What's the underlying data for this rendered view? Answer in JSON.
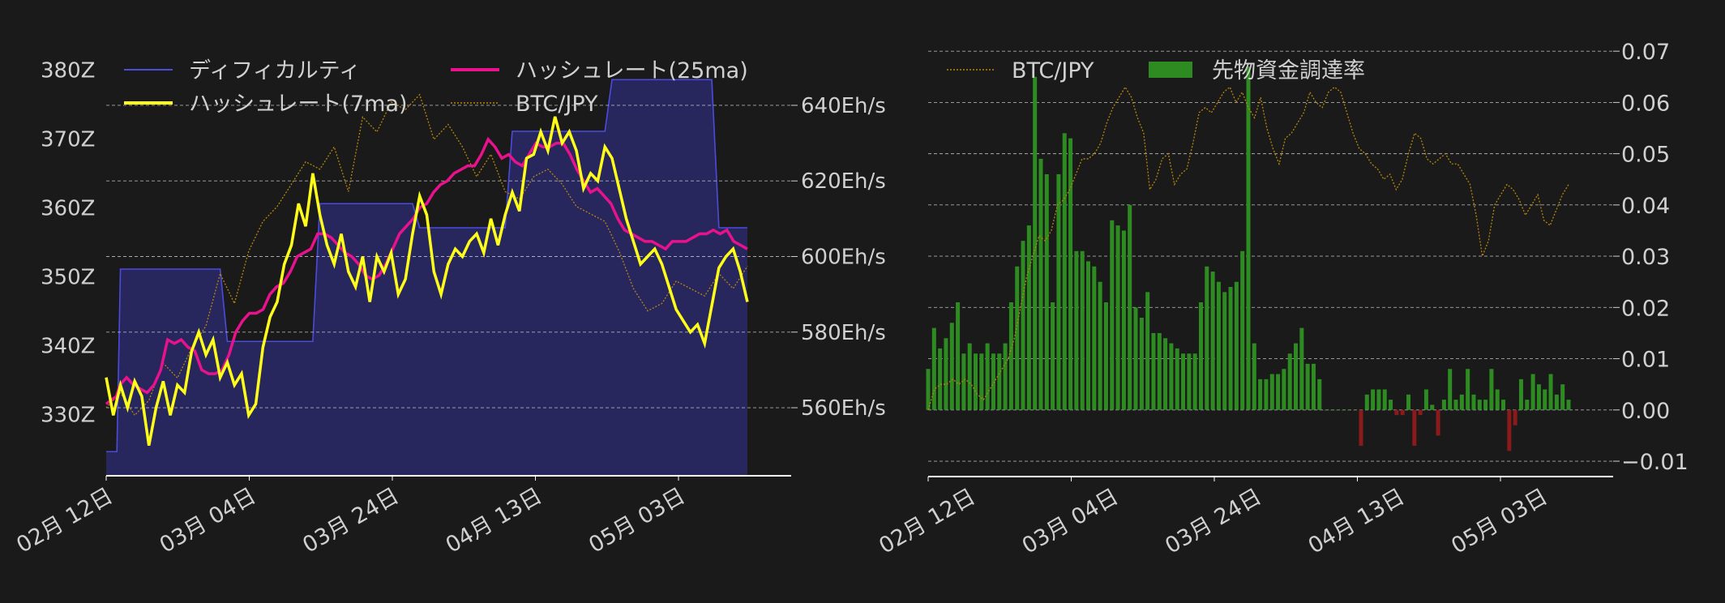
{
  "colors": {
    "background": "#1a1a1a",
    "difficulty_line": "#4b4bdc",
    "difficulty_fill": "#27275e",
    "hash7": "#ffff19",
    "hash25": "#e8128c",
    "btc": "#b8860b",
    "funding_pos": "#2e8b22",
    "funding_neg": "#8b1a1a",
    "grid": "#d0d0d0",
    "axis": "#ffffff",
    "text": "#d0d0d0"
  },
  "chart_data": [
    {
      "type": "line",
      "legend": [
        "ディフィカルティ",
        "ハッシュレート(25ma)",
        "ハッシュレート(7ma)",
        "BTC/JPY"
      ],
      "legend_placement": "top",
      "grid": true,
      "x_tick_labels": [
        "02月 12日",
        "03月 04日",
        "03月 24日",
        "04月 13日",
        "05月 03日"
      ],
      "x_tick_days": [
        0,
        20,
        40,
        60,
        80
      ],
      "xlim_days": [
        0,
        90
      ],
      "left_axis": {
        "ticks": [
          330,
          340,
          350,
          360,
          370,
          380
        ],
        "tick_labels": [
          "330Z",
          "340Z",
          "350Z",
          "360Z",
          "370Z",
          "380Z"
        ],
        "ylim": [
          321,
          383
        ]
      },
      "right_axis": {
        "ticks": [
          560,
          580,
          600,
          620,
          640
        ],
        "tick_labels": [
          "560Eh/s",
          "580Eh/s",
          "600Eh/s",
          "620Eh/s",
          "640Eh/s"
        ],
        "ylim": [
          542,
          655
        ]
      },
      "difficulty": [
        [
          0,
          324.5
        ],
        [
          1.5,
          324.5
        ],
        [
          2,
          351
        ],
        [
          16,
          351
        ],
        [
          17,
          340.5
        ],
        [
          29,
          340.5
        ],
        [
          30,
          360.5
        ],
        [
          43,
          360.5
        ],
        [
          44,
          357
        ],
        [
          56,
          357
        ],
        [
          57,
          371
        ],
        [
          70,
          371
        ],
        [
          71,
          378.5
        ],
        [
          85,
          378.5
        ],
        [
          86,
          357
        ],
        [
          90,
          357
        ]
      ],
      "hashrate_25ma": [
        [
          0,
          561
        ],
        [
          3,
          563
        ],
        [
          4,
          566
        ],
        [
          6,
          568
        ],
        [
          8,
          566
        ],
        [
          10,
          565
        ],
        [
          12,
          564
        ],
        [
          14,
          566
        ],
        [
          16,
          570
        ],
        [
          18,
          578
        ],
        [
          20,
          577
        ],
        [
          22,
          578
        ],
        [
          24,
          576
        ],
        [
          26,
          575
        ],
        [
          28,
          570
        ],
        [
          30,
          569
        ],
        [
          32,
          569
        ],
        [
          34,
          570
        ],
        [
          36,
          574
        ],
        [
          38,
          580
        ],
        [
          40,
          583
        ],
        [
          42,
          585
        ],
        [
          44,
          585
        ],
        [
          46,
          586
        ],
        [
          48,
          590
        ],
        [
          50,
          592
        ],
        [
          52,
          593
        ],
        [
          54,
          596
        ],
        [
          56,
          600
        ],
        [
          58,
          601
        ],
        [
          60,
          602
        ],
        [
          62,
          606
        ],
        [
          64,
          606
        ],
        [
          66,
          605
        ],
        [
          68,
          603
        ],
        [
          70,
          601
        ],
        [
          72,
          600
        ],
        [
          74,
          598
        ],
        [
          76,
          595
        ],
        [
          78,
          594
        ],
        [
          80,
          595
        ],
        [
          82,
          598
        ],
        [
          84,
          602
        ],
        [
          86,
          606
        ],
        [
          88,
          608
        ],
        [
          90,
          610
        ],
        [
          92,
          613
        ],
        [
          94,
          614
        ],
        [
          96,
          617
        ],
        [
          98,
          619
        ],
        [
          100,
          620
        ],
        [
          102,
          622
        ],
        [
          104,
          623
        ],
        [
          106,
          624
        ],
        [
          108,
          624
        ],
        [
          110,
          627
        ],
        [
          112,
          631
        ],
        [
          114,
          629
        ],
        [
          116,
          626
        ],
        [
          118,
          627
        ],
        [
          120,
          625
        ],
        [
          122,
          624
        ],
        [
          124,
          627
        ],
        [
          126,
          630
        ],
        [
          128,
          629
        ],
        [
          130,
          629
        ],
        [
          132,
          630
        ],
        [
          134,
          630
        ],
        [
          136,
          627
        ],
        [
          138,
          623
        ],
        [
          140,
          620
        ],
        [
          142,
          617
        ],
        [
          144,
          618
        ],
        [
          146,
          616
        ],
        [
          148,
          614
        ],
        [
          150,
          610
        ],
        [
          152,
          607
        ],
        [
          154,
          606
        ],
        [
          156,
          605
        ],
        [
          158,
          604
        ],
        [
          160,
          604
        ],
        [
          162,
          603
        ],
        [
          164,
          602
        ],
        [
          166,
          604
        ],
        [
          168,
          604
        ],
        [
          170,
          604
        ],
        [
          172,
          605
        ],
        [
          174,
          606
        ],
        [
          176,
          606
        ],
        [
          178,
          607
        ],
        [
          180,
          606
        ],
        [
          182,
          607
        ],
        [
          184,
          604
        ],
        [
          186,
          603
        ],
        [
          188,
          602
        ]
      ],
      "hashrate_7ma": [
        [
          0,
          568
        ],
        [
          1,
          558
        ],
        [
          2,
          566
        ],
        [
          3,
          560
        ],
        [
          4,
          567
        ],
        [
          5,
          563
        ],
        [
          6,
          550
        ],
        [
          7,
          560
        ],
        [
          8,
          567
        ],
        [
          9,
          558
        ],
        [
          10,
          566
        ],
        [
          11,
          564
        ],
        [
          12,
          575
        ],
        [
          13,
          580
        ],
        [
          14,
          574
        ],
        [
          15,
          578
        ],
        [
          16,
          568
        ],
        [
          17,
          572
        ],
        [
          18,
          566
        ],
        [
          19,
          569
        ],
        [
          20,
          558
        ],
        [
          21,
          561
        ],
        [
          22,
          576
        ],
        [
          23,
          584
        ],
        [
          24,
          588
        ],
        [
          25,
          598
        ],
        [
          26,
          603
        ],
        [
          27,
          614
        ],
        [
          28,
          608
        ],
        [
          29,
          622
        ],
        [
          30,
          611
        ],
        [
          31,
          603
        ],
        [
          32,
          598
        ],
        [
          33,
          606
        ],
        [
          34,
          596
        ],
        [
          35,
          592
        ],
        [
          36,
          600
        ],
        [
          37,
          588
        ],
        [
          38,
          600
        ],
        [
          39,
          596
        ],
        [
          40,
          601
        ],
        [
          41,
          590
        ],
        [
          42,
          594
        ],
        [
          43,
          606
        ],
        [
          44,
          616
        ],
        [
          45,
          611
        ],
        [
          46,
          596
        ],
        [
          47,
          590
        ],
        [
          48,
          598
        ],
        [
          49,
          602
        ],
        [
          50,
          600
        ],
        [
          51,
          604
        ],
        [
          52,
          606
        ],
        [
          53,
          601
        ],
        [
          54,
          610
        ],
        [
          55,
          603
        ],
        [
          56,
          611
        ],
        [
          57,
          617
        ],
        [
          58,
          612
        ],
        [
          59,
          626
        ],
        [
          60,
          627
        ],
        [
          61,
          633
        ],
        [
          62,
          628
        ],
        [
          63,
          637
        ],
        [
          64,
          630
        ],
        [
          65,
          633
        ],
        [
          66,
          628
        ],
        [
          67,
          618
        ],
        [
          68,
          622
        ],
        [
          69,
          620
        ],
        [
          70,
          629
        ],
        [
          71,
          626
        ],
        [
          72,
          618
        ],
        [
          73,
          610
        ],
        [
          74,
          604
        ],
        [
          75,
          598
        ],
        [
          76,
          600
        ],
        [
          77,
          602
        ],
        [
          78,
          598
        ],
        [
          79,
          592
        ],
        [
          80,
          586
        ],
        [
          81,
          583
        ],
        [
          82,
          580
        ],
        [
          83,
          582
        ],
        [
          84,
          577
        ],
        [
          85,
          587
        ],
        [
          86,
          597
        ],
        [
          87,
          600
        ],
        [
          88,
          602
        ],
        [
          89,
          596
        ],
        [
          90,
          588
        ]
      ],
      "btc_jpy_note": "unlabeled price line (shares BTC/JPY legend), unit-less display curve",
      "btc_jpy": [
        [
          0,
          0.08
        ],
        [
          2,
          0.12
        ],
        [
          4,
          0.06
        ],
        [
          6,
          0.1
        ],
        [
          8,
          0.2
        ],
        [
          10,
          0.16
        ],
        [
          12,
          0.24
        ],
        [
          14,
          0.3
        ],
        [
          16,
          0.44
        ],
        [
          18,
          0.36
        ],
        [
          20,
          0.5
        ],
        [
          22,
          0.58
        ],
        [
          24,
          0.62
        ],
        [
          26,
          0.68
        ],
        [
          28,
          0.74
        ],
        [
          30,
          0.72
        ],
        [
          32,
          0.78
        ],
        [
          34,
          0.66
        ],
        [
          36,
          0.86
        ],
        [
          38,
          0.82
        ],
        [
          40,
          0.9
        ],
        [
          42,
          0.88
        ],
        [
          44,
          0.92
        ],
        [
          46,
          0.8
        ],
        [
          48,
          0.84
        ],
        [
          50,
          0.78
        ],
        [
          52,
          0.7
        ],
        [
          54,
          0.76
        ],
        [
          56,
          0.66
        ],
        [
          58,
          0.64
        ],
        [
          60,
          0.7
        ],
        [
          62,
          0.72
        ],
        [
          64,
          0.68
        ],
        [
          66,
          0.62
        ],
        [
          68,
          0.6
        ],
        [
          70,
          0.58
        ],
        [
          72,
          0.5
        ],
        [
          74,
          0.4
        ],
        [
          76,
          0.34
        ],
        [
          78,
          0.36
        ],
        [
          80,
          0.42
        ],
        [
          82,
          0.4
        ],
        [
          84,
          0.38
        ],
        [
          86,
          0.44
        ],
        [
          88,
          0.4
        ],
        [
          90,
          0.46
        ]
      ]
    },
    {
      "type": "bar",
      "legend": [
        "BTC/JPY",
        "先物資金調達率"
      ],
      "legend_placement": "top-left",
      "grid": true,
      "x_tick_labels": [
        "02月 12日",
        "03月 04日",
        "03月 24日",
        "04月 13日",
        "05月 03日"
      ],
      "right_axis": {
        "ticks": [
          -0.01,
          0.0,
          0.01,
          0.02,
          0.03,
          0.04,
          0.05,
          0.06,
          0.07
        ],
        "tick_labels": [
          "−0.01",
          "0.00",
          "0.01",
          "0.02",
          "0.03",
          "0.04",
          "0.05",
          "0.06",
          "0.07"
        ],
        "ylim": [
          -0.013,
          0.0705
        ]
      },
      "funding_rate": [
        0.008,
        0.016,
        0.012,
        0.014,
        0.017,
        0.021,
        0.011,
        0.013,
        0.011,
        0.011,
        0.013,
        0.011,
        0.011,
        0.013,
        0.021,
        0.028,
        0.033,
        0.036,
        0.065,
        0.049,
        0.046,
        0.021,
        0.046,
        0.054,
        0.053,
        0.031,
        0.031,
        0.029,
        0.028,
        0.025,
        0.021,
        0.037,
        0.036,
        0.035,
        0.04,
        0.02,
        0.018,
        0.023,
        0.015,
        0.015,
        0.014,
        0.013,
        0.012,
        0.011,
        0.011,
        0.011,
        0.021,
        0.028,
        0.027,
        0.025,
        0.023,
        0.024,
        0.025,
        0.031,
        0.067,
        0.013,
        0.006,
        0.006,
        0.007,
        0.007,
        0.008,
        0.011,
        0.013,
        0.016,
        0.009,
        0.009,
        0.006,
        0.0,
        0.0,
        0.0,
        0.0,
        0.0,
        0.0,
        -0.007,
        0.003,
        0.004,
        0.004,
        0.004,
        0.002,
        -0.001,
        -0.001,
        0.003,
        -0.007,
        -0.001,
        0.004,
        0.001,
        -0.005,
        0.002,
        0.008,
        0.002,
        0.003,
        0.008,
        0.003,
        0.002,
        0.002,
        0.008,
        0.004,
        0.002,
        -0.008,
        -0.003,
        0.006,
        0.002,
        0.007,
        0.005,
        0.004,
        0.007,
        0.003,
        0.005,
        0.002
      ],
      "btc_jpy": [
        0.0,
        0.004,
        0.005,
        0.005,
        0.006,
        0.005,
        0.006,
        0.005,
        0.003,
        0.002,
        0.004,
        0.006,
        0.008,
        0.01,
        0.014,
        0.02,
        0.026,
        0.03,
        0.034,
        0.033,
        0.035,
        0.04,
        0.041,
        0.043,
        0.046,
        0.049,
        0.049,
        0.05,
        0.052,
        0.056,
        0.059,
        0.061,
        0.063,
        0.061,
        0.057,
        0.054,
        0.043,
        0.045,
        0.049,
        0.05,
        0.044,
        0.046,
        0.047,
        0.052,
        0.058,
        0.059,
        0.058,
        0.06,
        0.062,
        0.063,
        0.06,
        0.062,
        0.059,
        0.057,
        0.061,
        0.055,
        0.051,
        0.048,
        0.053,
        0.054,
        0.056,
        0.058,
        0.062,
        0.06,
        0.059,
        0.062,
        0.063,
        0.062,
        0.058,
        0.054,
        0.051,
        0.05,
        0.048,
        0.047,
        0.045,
        0.046,
        0.043,
        0.045,
        0.05,
        0.054,
        0.053,
        0.049,
        0.048,
        0.049,
        0.05,
        0.048,
        0.048,
        0.046,
        0.044,
        0.038,
        0.03,
        0.033,
        0.04,
        0.042,
        0.044,
        0.043,
        0.041,
        0.038,
        0.04,
        0.042,
        0.037,
        0.036,
        0.039,
        0.042,
        0.044
      ]
    }
  ]
}
